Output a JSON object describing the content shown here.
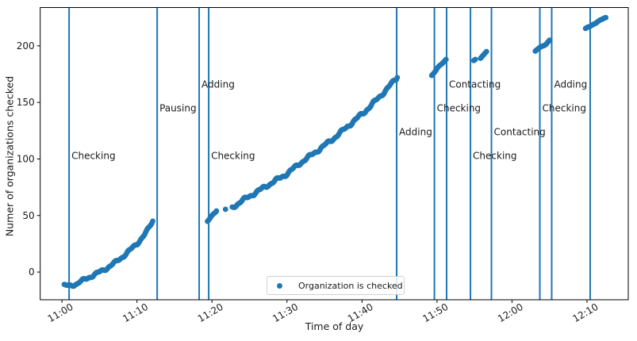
{
  "figure": {
    "legend": {
      "label": "Organization is checked"
    },
    "colors": {
      "accent": "#1f77b4",
      "text": "#1a1a1a",
      "spine": "#000000",
      "legend_border": "#d0d0d0",
      "background": "#ffffff"
    }
  },
  "chart_data": {
    "type": "scatter",
    "title": "",
    "xlabel": "Time of day",
    "ylabel": "Numer of organizations checked",
    "x_unit": "minutes_after_11:00",
    "xlim": [
      -2.9,
      75.5
    ],
    "ylim": [
      -24.5,
      233.9
    ],
    "grid": false,
    "legend_position": "lower center",
    "x_ticks": [
      {
        "t": 0,
        "label": "11:00"
      },
      {
        "t": 10,
        "label": "11:10"
      },
      {
        "t": 20,
        "label": "11:20"
      },
      {
        "t": 30,
        "label": "11:30"
      },
      {
        "t": 40,
        "label": "11:40"
      },
      {
        "t": 50,
        "label": "11:50"
      },
      {
        "t": 60,
        "label": "12:00"
      },
      {
        "t": 70,
        "label": "12:10"
      }
    ],
    "y_ticks": [
      0,
      50,
      100,
      150,
      200
    ],
    "events": [
      {
        "t": 0.95,
        "time": "11:01",
        "label": "Checking",
        "label_v": 100
      },
      {
        "t": 12.69,
        "time": "11:13",
        "label": "Pausing",
        "label_v": 142
      },
      {
        "t": 18.29,
        "time": "11:18",
        "label": "Adding",
        "label_v": 163
      },
      {
        "t": 19.56,
        "time": "11:20",
        "label": "Checking",
        "label_v": 100
      },
      {
        "t": 44.62,
        "time": "11:45",
        "label": "Adding",
        "label_v": 121
      },
      {
        "t": 49.65,
        "time": "11:50",
        "label": "Checking",
        "label_v": 142
      },
      {
        "t": 51.28,
        "time": "11:51",
        "label": "Contacting",
        "label_v": 163
      },
      {
        "t": 54.46,
        "time": "11:54",
        "label": "Checking",
        "label_v": 100
      },
      {
        "t": 57.26,
        "time": "11:57",
        "label": "Contacting",
        "label_v": 121
      },
      {
        "t": 63.71,
        "time": "12:04",
        "label": "Checking",
        "label_v": 142
      },
      {
        "t": 65.29,
        "time": "12:05",
        "label": "Adding",
        "label_v": 163
      },
      {
        "t": 70.42,
        "time": "12:10",
        "label": "",
        "label_v": 100
      }
    ],
    "series": [
      {
        "name": "Organization is checked",
        "marker": "dot",
        "color": "#1f77b4",
        "dot_radius": 3.4,
        "dot_step_minutes": 0.12,
        "segments": [
          {
            "wobble": 1.1,
            "waypoints": [
              [
                0.3,
                -12
              ],
              [
                1.0,
                -12
              ],
              [
                2.0,
                -10.5
              ],
              [
                3.0,
                -6.5
              ],
              [
                4.0,
                -3.5
              ],
              [
                5.0,
                0
              ],
              [
                6.0,
                3.5
              ],
              [
                7.0,
                8
              ],
              [
                8.0,
                13
              ],
              [
                9.0,
                19
              ],
              [
                10.0,
                25
              ],
              [
                11.0,
                33
              ],
              [
                11.6,
                39
              ],
              [
                12.1,
                45
              ]
            ]
          },
          {
            "wobble": 0.5,
            "waypoints": [
              [
                19.4,
                45
              ],
              [
                19.8,
                48
              ],
              [
                20.2,
                51
              ],
              [
                20.6,
                54
              ]
            ]
          },
          {
            "wobble": 0,
            "waypoints": [
              [
                21.8,
                55.5
              ]
            ]
          },
          {
            "wobble": 1.3,
            "waypoints": [
              [
                22.7,
                57
              ],
              [
                24.0,
                63
              ],
              [
                25.5,
                69
              ],
              [
                27.0,
                75
              ],
              [
                28.5,
                81
              ],
              [
                29.8,
                86
              ],
              [
                31.9,
                97
              ],
              [
                34.0,
                107
              ],
              [
                36.2,
                118
              ],
              [
                38.3,
                130
              ],
              [
                40.4,
                142
              ],
              [
                42.5,
                156
              ],
              [
                44.7,
                172
              ]
            ]
          },
          {
            "wobble": 0.4,
            "waypoints": [
              [
                49.3,
                174
              ],
              [
                49.8,
                178
              ],
              [
                50.3,
                182
              ],
              [
                50.8,
                185
              ],
              [
                51.2,
                188
              ]
            ]
          },
          {
            "wobble": 0,
            "waypoints": [
              [
                54.9,
                187
              ],
              [
                55.1,
                188
              ]
            ]
          },
          {
            "wobble": 0,
            "waypoints": [
              [
                55.8,
                189
              ],
              [
                56.2,
                192
              ],
              [
                56.6,
                195
              ]
            ]
          },
          {
            "wobble": 0.4,
            "waypoints": [
              [
                63.1,
                195
              ],
              [
                63.6,
                198
              ],
              [
                64.1,
                200
              ],
              [
                64.6,
                202
              ],
              [
                65.0,
                205
              ]
            ]
          },
          {
            "wobble": 0.4,
            "waypoints": [
              [
                69.8,
                215
              ],
              [
                70.3,
                217
              ],
              [
                70.8,
                219
              ],
              [
                71.3,
                221
              ],
              [
                71.9,
                223
              ],
              [
                72.5,
                225
              ]
            ]
          }
        ]
      }
    ]
  }
}
